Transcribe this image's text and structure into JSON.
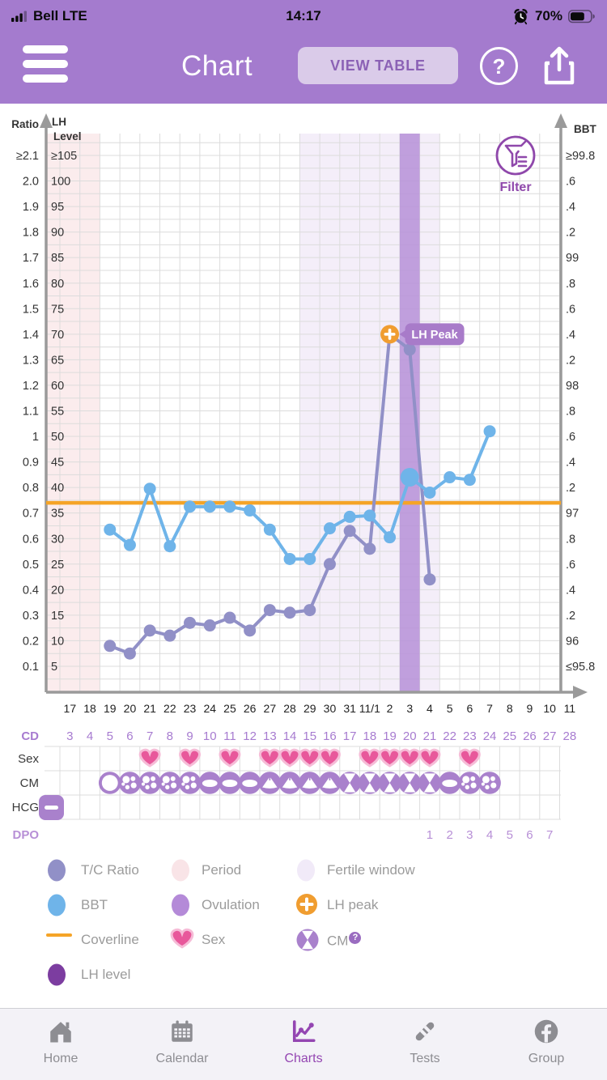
{
  "status_bar": {
    "carrier": "Bell LTE",
    "time": "14:17",
    "battery_percent": "70%",
    "battery_level": 70,
    "signal_bars_filled": 3
  },
  "header": {
    "title": "Chart",
    "view_table_label": "VIEW TABLE",
    "help_glyph": "?"
  },
  "chart": {
    "filter_label": "Filter",
    "lh_peak_badge": "LH Peak",
    "axis_titles": {
      "left_outer": "Ratio",
      "left_inner_line1": "LH",
      "left_inner_line2": "Level",
      "right": "BBT"
    },
    "ratio_ticks": [
      "≥2.1",
      "2.0",
      "1.9",
      "1.8",
      "1.7",
      "1.6",
      "1.5",
      "1.4",
      "1.3",
      "1.2",
      "1.1",
      "1",
      "0.9",
      "0.8",
      "0.7",
      "0.6",
      "0.5",
      "0.4",
      "0.3",
      "0.2",
      "0.1"
    ],
    "lh_ticks": [
      "≥105",
      "100",
      "95",
      "90",
      "85",
      "80",
      "75",
      "70",
      "65",
      "60",
      "55",
      "50",
      "45",
      "40",
      "35",
      "30",
      "25",
      "20",
      "15",
      "10",
      "5"
    ],
    "bbt_ticks": [
      "≥99.8",
      ".6",
      ".4",
      ".2",
      "99",
      ".8",
      ".6",
      ".4",
      ".2",
      "98",
      ".8",
      ".6",
      ".4",
      ".2",
      "97",
      ".8",
      ".6",
      ".4",
      ".2",
      "96",
      "≤95.8"
    ]
  },
  "chart_data": {
    "type": "line",
    "x_dates": [
      "17",
      "18",
      "19",
      "20",
      "21",
      "22",
      "23",
      "24",
      "25",
      "26",
      "27",
      "28",
      "29",
      "30",
      "31",
      "11/1",
      "2",
      "3",
      "4",
      "5",
      "6",
      "7",
      "8",
      "9",
      "10",
      "11"
    ],
    "cycle_days": [
      3,
      4,
      5,
      6,
      7,
      8,
      9,
      10,
      11,
      12,
      13,
      14,
      15,
      16,
      17,
      18,
      19,
      20,
      21,
      22,
      23,
      24,
      25,
      26,
      27,
      28
    ],
    "axis_ranges": {
      "ratio": [
        0.1,
        2.1
      ],
      "lh_level": [
        5,
        105
      ],
      "bbt": [
        95.8,
        99.8
      ]
    },
    "series": [
      {
        "name": "T/C Ratio",
        "axis": "ratio",
        "color": "#9190c7",
        "values": [
          null,
          null,
          0.18,
          0.15,
          0.24,
          0.22,
          0.27,
          0.26,
          0.29,
          0.24,
          0.32,
          0.31,
          0.32,
          0.5,
          0.63,
          0.56,
          1.4,
          1.34,
          0.44,
          null,
          null,
          null,
          null,
          null,
          null,
          null
        ]
      },
      {
        "name": "BBT",
        "axis": "bbt",
        "color": "#6fb4e9",
        "big_dot_date": "3",
        "values": [
          null,
          null,
          96.87,
          96.75,
          97.19,
          96.74,
          97.05,
          97.05,
          97.05,
          97.02,
          96.87,
          96.64,
          96.64,
          96.88,
          96.97,
          96.98,
          96.81,
          97.28,
          97.16,
          97.28,
          97.26,
          97.64,
          null,
          null,
          null,
          null
        ]
      }
    ],
    "coverline_bbt": 97.08,
    "lh_peak": {
      "date": "2",
      "ratio": 1.4
    },
    "ovulation_date": "3",
    "period_dates": [
      "17",
      "18"
    ],
    "fertile_window_dates": [
      "29",
      "30",
      "31",
      "11/1",
      "2",
      "3",
      "4"
    ],
    "sex_dates": [
      "21",
      "23",
      "25",
      "27",
      "28",
      "29",
      "30",
      "11/1",
      "2",
      "3",
      "4",
      "6"
    ],
    "cm_records": [
      {
        "date": "19",
        "type": "dry"
      },
      {
        "date": "20",
        "type": "sticky"
      },
      {
        "date": "21",
        "type": "sticky"
      },
      {
        "date": "22",
        "type": "sticky"
      },
      {
        "date": "23",
        "type": "sticky"
      },
      {
        "date": "24",
        "type": "creamy"
      },
      {
        "date": "25",
        "type": "creamy"
      },
      {
        "date": "26",
        "type": "creamy"
      },
      {
        "date": "27",
        "type": "eggwhite"
      },
      {
        "date": "28",
        "type": "eggwhite"
      },
      {
        "date": "29",
        "type": "eggwhite"
      },
      {
        "date": "30",
        "type": "eggwhite"
      },
      {
        "date": "31",
        "type": "watery"
      },
      {
        "date": "11/1",
        "type": "watery"
      },
      {
        "date": "2",
        "type": "watery"
      },
      {
        "date": "3",
        "type": "watery"
      },
      {
        "date": "4",
        "type": "watery"
      },
      {
        "date": "5",
        "type": "creamy"
      },
      {
        "date": "6",
        "type": "sticky"
      },
      {
        "date": "7",
        "type": "sticky"
      }
    ],
    "hcg": {
      "result": "negative"
    },
    "dpo": {
      "start_date": "4",
      "values": [
        1,
        2,
        3,
        4,
        5,
        6,
        7
      ]
    }
  },
  "strip_labels": {
    "cd": "CD",
    "sex": "Sex",
    "cm": "CM",
    "hcg": "HCG",
    "dpo": "DPO"
  },
  "legend": {
    "cm_help_glyph": "?",
    "items": [
      {
        "icon": "dot",
        "color": "#9190c7",
        "label": "T/C Ratio"
      },
      {
        "icon": "dot",
        "color": "#f9e4e7",
        "label": "Period"
      },
      {
        "icon": "dot",
        "color": "#f1eaf8",
        "label": "Fertile window"
      },
      {
        "icon": "dot",
        "color": "#6fb4e9",
        "label": "BBT"
      },
      {
        "icon": "dot",
        "color": "#b48ad8",
        "label": "Ovulation"
      },
      {
        "icon": "plus",
        "color": "#f09d30",
        "label": "LH peak"
      },
      {
        "icon": "line",
        "color": "#f5a427",
        "label": "Coverline"
      },
      {
        "icon": "heart",
        "color": "#e8589b",
        "label": "Sex"
      },
      {
        "icon": "cm",
        "color": "#a981cc",
        "label": "CM",
        "has_help_badge": true
      },
      {
        "icon": "dot",
        "color": "#7c3da0",
        "label": "LH level"
      }
    ]
  },
  "tab_bar": {
    "items": [
      {
        "id": "home",
        "label": "Home",
        "active": false
      },
      {
        "id": "calendar",
        "label": "Calendar",
        "active": false
      },
      {
        "id": "charts",
        "label": "Charts",
        "active": true
      },
      {
        "id": "tests",
        "label": "Tests",
        "active": false
      },
      {
        "id": "group",
        "label": "Group",
        "active": false
      }
    ]
  },
  "colors": {
    "header_bg": "#a47bce",
    "accent_purple": "#8f48ab",
    "tc_ratio": "#9190c7",
    "bbt": "#6fb4e9",
    "coverline": "#f5a427",
    "lh_peak": "#f09d30",
    "ovulation_band": "#b690d8",
    "period_fill": "#fbeced",
    "fertile_fill": "#f4eef9",
    "heart": "#e8589b",
    "heart_glow": "#f6bcd7",
    "cm_icon": "#a981cc",
    "cd_text": "#a77bd0",
    "dpo_text": "#b78fd6",
    "lh_level": "#7c3da0",
    "badge_bg": "#a87bc9",
    "tab_active": "#9446b2",
    "tab_inactive": "#8d8d92",
    "grid": "#dcdcdc",
    "axis": "#9a9a9a",
    "legend_text": "#9b9b9b"
  }
}
